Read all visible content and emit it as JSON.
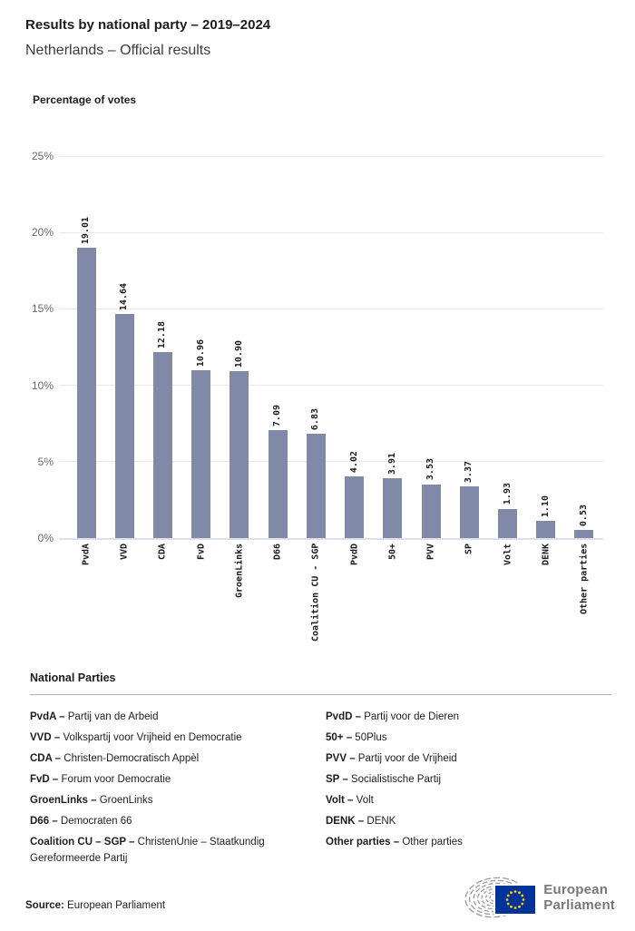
{
  "header": {
    "title": "Results by national party – 2019–2024",
    "subtitle": "Netherlands – Official results"
  },
  "chart_data": {
    "type": "bar",
    "title": "Percentage of votes",
    "categories": [
      "PvdA",
      "VVD",
      "CDA",
      "FvD",
      "GroenLinks",
      "D66",
      "Coalition CU - SGP",
      "PvdD",
      "50+",
      "PVV",
      "SP",
      "Volt",
      "DENK",
      "Other parties"
    ],
    "values": [
      19.01,
      14.64,
      12.18,
      10.96,
      10.9,
      7.09,
      6.83,
      4.02,
      3.91,
      3.53,
      3.37,
      1.93,
      1.1,
      0.53
    ],
    "value_decimals": 2,
    "xlabel": "",
    "ylabel": "Percentage of votes",
    "ylim": [
      0,
      25
    ],
    "yticks": [
      0,
      5,
      10,
      15,
      20,
      25
    ],
    "ytick_suffix": "%",
    "grid": true,
    "legend_position": "none",
    "bar_color": "#8189a8",
    "label_rotation": -90
  },
  "legend": {
    "heading": "National Parties",
    "columns": [
      [
        {
          "abbr": "PvdA –",
          "name": "Partij van de Arbeid"
        },
        {
          "abbr": "VVD –",
          "name": "Volkspartij voor Vrijheid en Democratie"
        },
        {
          "abbr": "CDA –",
          "name": "Christen-Democratisch Appèl"
        },
        {
          "abbr": "FvD –",
          "name": "Forum voor Democratie"
        },
        {
          "abbr": "GroenLinks –",
          "name": "GroenLinks"
        },
        {
          "abbr": "D66 –",
          "name": "Democraten 66"
        },
        {
          "abbr": "Coalition CU – SGP –",
          "name": "ChristenUnie – Staatkundig Gereformeerde Partij"
        }
      ],
      [
        {
          "abbr": "PvdD –",
          "name": "Partij voor de Dieren"
        },
        {
          "abbr": "50+ –",
          "name": "50Plus"
        },
        {
          "abbr": "PVV –",
          "name": "Partij voor de Vrijheid"
        },
        {
          "abbr": "SP –",
          "name": "Socialistische Partij"
        },
        {
          "abbr": "Volt –",
          "name": "Volt"
        },
        {
          "abbr": "DENK –",
          "name": "DENK"
        },
        {
          "abbr": "Other parties –",
          "name": "Other parties"
        }
      ]
    ]
  },
  "footer": {
    "source_label": "Source:",
    "source_text": " European Parliament",
    "logo_line1": "European",
    "logo_line2": "Parliament",
    "logo_colors": {
      "gray": "#75787b",
      "arcs": "#9b9b9a",
      "flag_blue": "#003399",
      "star_yellow": "#ffcc00"
    }
  }
}
